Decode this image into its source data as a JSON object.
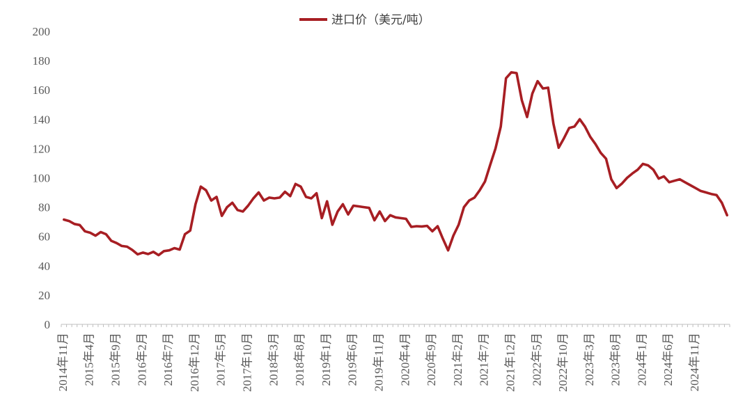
{
  "chart_data": {
    "type": "line",
    "title": "",
    "xlabel": "",
    "ylabel": "",
    "ylim": [
      0,
      200
    ],
    "yticks": [
      0,
      20,
      40,
      60,
      80,
      100,
      120,
      140,
      160,
      180,
      200
    ],
    "grid": false,
    "legend_position": "top-center",
    "colors": {
      "series": "#A71E23",
      "axis": "#BFBFBF",
      "text": "#595959"
    },
    "x_tick_labels": [
      "2014年11月",
      "2015年4月",
      "2015年9月",
      "2016年2月",
      "2016年7月",
      "2016年12月",
      "2017年5月",
      "2017年10月",
      "2018年3月",
      "2018年8月",
      "2019年1月",
      "2019年6月",
      "2019年11月",
      "2020年4月",
      "2020年9月",
      "2021年2月",
      "2021年7月",
      "2021年12月",
      "2022年5月",
      "2022年10月",
      "2023年3月",
      "2023年8月",
      "2024年1月",
      "2024年6月",
      "2024年11月"
    ],
    "series": [
      {
        "name": "进口价（美元/吨）",
        "values": [
          71.5,
          70.5,
          68.5,
          67.8,
          63.5,
          62.5,
          60.5,
          63,
          61.5,
          57,
          55.5,
          53.5,
          53,
          50.8,
          47.8,
          49,
          48,
          49.5,
          47.2,
          50,
          50.5,
          52,
          51,
          61.5,
          64,
          82,
          94,
          91.5,
          84.5,
          87,
          74,
          80,
          83,
          78,
          77,
          81,
          86,
          90,
          84.5,
          86.5,
          86,
          86.5,
          90.5,
          87.5,
          95.8,
          94,
          87,
          86,
          89.5,
          72.5,
          84,
          68,
          77,
          82,
          75,
          81,
          80.5,
          80,
          79.5,
          71,
          77,
          70.5,
          74.5,
          73,
          72.5,
          72,
          66.5,
          67,
          66.8,
          67.2,
          63.5,
          67,
          58.5,
          50.5,
          60.5,
          68,
          80,
          84.5,
          86.5,
          91.5,
          97.5,
          109,
          120,
          135,
          168,
          172,
          171.5,
          153,
          141.5,
          157.5,
          166,
          161,
          161.5,
          137,
          120.5,
          127,
          134,
          135,
          140,
          135,
          128,
          123,
          117,
          113,
          99,
          93,
          96,
          100,
          103,
          105.5,
          109.5,
          108.5,
          105.5,
          99.5,
          101,
          97,
          98,
          99,
          97,
          95,
          93,
          91,
          90,
          89,
          88.2,
          83,
          74.5
        ]
      }
    ]
  }
}
